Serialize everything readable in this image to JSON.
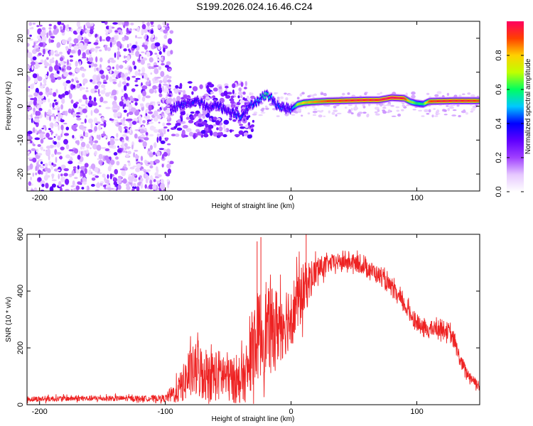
{
  "chart_data": [
    {
      "type": "heatmap",
      "title": "S199.2026.024.16.46.C24",
      "xlabel": "Height of straight line (km)",
      "ylabel": "Frequency (Hz)",
      "xlim": [
        -210,
        150
      ],
      "ylim": [
        -25,
        25
      ],
      "xticks": [
        -200,
        -100,
        0,
        100
      ],
      "xtick_labels": [
        "-200",
        "-100",
        "0",
        "100"
      ],
      "yticks": [
        -20,
        -10,
        0,
        10,
        20
      ],
      "ytick_labels": [
        "-20",
        "-10",
        "0",
        "10",
        "20"
      ],
      "colorbar": {
        "label": "Normalized spectral amplitude",
        "range": [
          0.0,
          1.0
        ],
        "ticks": [
          0.0,
          0.2,
          0.4,
          0.6,
          0.8
        ],
        "tick_labels": [
          "0.0",
          "0.2",
          "0.4",
          "0.6",
          "0.8"
        ],
        "colors": [
          "#ffffff",
          "#e6c8ff",
          "#a040ff",
          "#6000ff",
          "#0000ff",
          "#00c8ff",
          "#00ff60",
          "#c0ff00",
          "#ffd000",
          "#ff4000",
          "#ff0060"
        ]
      },
      "noise_region": {
        "x_range": [
          -210,
          -95
        ],
        "y_range": [
          -25,
          25
        ],
        "level": 0.1
      },
      "transition_region": {
        "x_range": [
          -98,
          -30
        ],
        "y_range": [
          -9,
          7
        ],
        "level": 0.25
      },
      "ridge": {
        "x": [
          -95,
          -90,
          -85,
          -80,
          -75,
          -70,
          -65,
          -60,
          -55,
          -50,
          -45,
          -40,
          -35,
          -30,
          -25,
          -20,
          -15,
          -10,
          -5,
          0,
          5,
          10,
          20,
          30,
          40,
          50,
          60,
          70,
          80,
          90,
          95,
          100,
          105,
          110,
          120,
          130,
          140,
          150
        ],
        "y": [
          -1,
          0,
          0.5,
          1,
          1.5,
          0.5,
          -1,
          1,
          -0.5,
          -1.5,
          -2,
          -3,
          -1,
          1,
          2,
          3.5,
          2,
          0,
          -0.5,
          -1,
          0.5,
          1,
          1.3,
          1.5,
          1.6,
          1.7,
          1.8,
          1.8,
          2.5,
          2.3,
          1.3,
          0.8,
          0.6,
          1.4,
          1.5,
          1.6,
          1.6,
          1.6
        ],
        "amplitude": [
          0.3,
          0.35,
          0.4,
          0.35,
          0.4,
          0.35,
          0.3,
          0.4,
          0.35,
          0.3,
          0.4,
          0.45,
          0.35,
          0.45,
          0.45,
          0.55,
          0.45,
          0.4,
          0.35,
          0.4,
          0.7,
          0.8,
          0.85,
          0.9,
          0.92,
          0.95,
          0.95,
          0.95,
          1.0,
          0.95,
          0.7,
          0.6,
          0.6,
          0.9,
          0.95,
          0.95,
          0.95,
          0.9
        ]
      }
    },
    {
      "type": "line",
      "xlabel": "Height of straight line (km)",
      "ylabel": "SNR (10 * v/v)",
      "xlim": [
        -210,
        150
      ],
      "ylim": [
        0,
        600
      ],
      "xticks": [
        -200,
        -100,
        0,
        100
      ],
      "xtick_labels": [
        "-200",
        "-100",
        "0",
        "100"
      ],
      "yticks": [
        0,
        200,
        400,
        600
      ],
      "ytick_labels": [
        "0",
        "200",
        "400",
        "600"
      ],
      "series": [
        {
          "name": "SNR",
          "color": "#ee2222",
          "x": [
            -210,
            -200,
            -180,
            -160,
            -140,
            -120,
            -100,
            -95,
            -90,
            -85,
            -80,
            -75,
            -70,
            -65,
            -60,
            -55,
            -50,
            -45,
            -40,
            -35,
            -30,
            -25,
            -20,
            -15,
            -10,
            -5,
            0,
            5,
            10,
            15,
            20,
            25,
            30,
            40,
            50,
            60,
            70,
            80,
            90,
            100,
            105,
            110,
            120,
            125,
            130,
            135,
            140,
            150
          ],
          "y": [
            20,
            20,
            22,
            22,
            22,
            22,
            23,
            35,
            50,
            80,
            110,
            120,
            115,
            105,
            100,
            105,
            95,
            85,
            90,
            100,
            220,
            250,
            260,
            270,
            280,
            300,
            320,
            360,
            400,
            440,
            470,
            485,
            495,
            505,
            500,
            485,
            455,
            410,
            350,
            290,
            265,
            265,
            270,
            260,
            220,
            150,
            110,
            65
          ],
          "noise_amplitude": [
            10,
            10,
            10,
            10,
            10,
            10,
            12,
            30,
            45,
            70,
            90,
            100,
            100,
            95,
            90,
            95,
            90,
            80,
            85,
            90,
            150,
            160,
            150,
            140,
            140,
            130,
            120,
            110,
            100,
            70,
            50,
            40,
            30,
            30,
            30,
            30,
            30,
            30,
            30,
            30,
            30,
            30,
            30,
            30,
            30,
            25,
            20,
            20
          ]
        }
      ]
    }
  ]
}
